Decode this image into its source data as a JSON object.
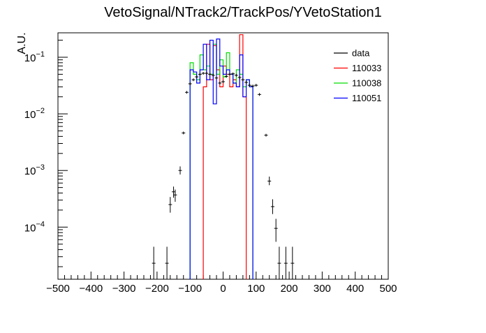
{
  "chart_data": {
    "type": "histogram",
    "title": "VetoSignal/NTrack2/TrackPos/YVetoStation1",
    "xlabel": "",
    "ylabel": "A.U.",
    "xlim": [
      -500,
      500
    ],
    "ylim": [
      1.2e-05,
      0.27
    ],
    "yscale": "log",
    "grid": false,
    "legend_position": "top-right",
    "x_ticks": [
      -500,
      -400,
      -300,
      -200,
      -100,
      0,
      100,
      200,
      300,
      400,
      500
    ],
    "x_tick_labels": [
      "−500",
      "−400",
      "−300",
      "−200",
      "−100",
      "0",
      "100",
      "200",
      "300",
      "400",
      "500"
    ],
    "y_ticks": [
      {
        "base": "10",
        "exp": "−4",
        "value": 0.0001
      },
      {
        "base": "10",
        "exp": "−3",
        "value": 0.001
      },
      {
        "base": "10",
        "exp": "−2",
        "value": 0.01
      },
      {
        "base": "10",
        "exp": "−1",
        "value": 0.1
      }
    ],
    "series": [
      {
        "name": "data",
        "style": "points",
        "color": "#000000",
        "points": [
          {
            "x": -210,
            "y": 2.3e-05,
            "ylo": 1.2e-05,
            "yhi": 4.5e-05
          },
          {
            "x": -170,
            "y": 2.3e-05,
            "ylo": 1.2e-05,
            "yhi": 4.5e-05
          },
          {
            "x": -160,
            "y": 0.00025,
            "ylo": 0.00018,
            "yhi": 0.00034
          },
          {
            "x": -150,
            "y": 0.00042,
            "ylo": 0.00033,
            "yhi": 0.00052
          },
          {
            "x": -145,
            "y": 0.00037,
            "ylo": 0.00028,
            "yhi": 0.00046
          },
          {
            "x": -130,
            "y": 0.001,
            "ylo": 0.00085,
            "yhi": 0.00118
          },
          {
            "x": -120,
            "y": 0.0046
          },
          {
            "x": -110,
            "y": 0.024
          },
          {
            "x": -100,
            "y": 0.034
          },
          {
            "x": -90,
            "y": 0.04
          },
          {
            "x": -80,
            "y": 0.045
          },
          {
            "x": -70,
            "y": 0.05
          },
          {
            "x": -60,
            "y": 0.052
          },
          {
            "x": -50,
            "y": 0.052
          },
          {
            "x": -40,
            "y": 0.05
          },
          {
            "x": -30,
            "y": 0.048
          },
          {
            "x": -20,
            "y": 0.043
          },
          {
            "x": -10,
            "y": 0.035
          },
          {
            "x": 0,
            "y": 0.037
          },
          {
            "x": 10,
            "y": 0.046
          },
          {
            "x": 20,
            "y": 0.05
          },
          {
            "x": 30,
            "y": 0.051
          },
          {
            "x": 40,
            "y": 0.048
          },
          {
            "x": 50,
            "y": 0.044
          },
          {
            "x": 60,
            "y": 0.04
          },
          {
            "x": 70,
            "y": 0.036
          },
          {
            "x": 80,
            "y": 0.032
          },
          {
            "x": 90,
            "y": 0.031
          },
          {
            "x": 100,
            "y": 0.032
          },
          {
            "x": 110,
            "y": 0.022
          },
          {
            "x": 130,
            "y": 0.0042
          },
          {
            "x": 140,
            "y": 0.00065,
            "ylo": 0.00055,
            "yhi": 0.00078
          },
          {
            "x": 150,
            "y": 0.00023,
            "ylo": 0.00017,
            "yhi": 0.00031
          },
          {
            "x": 160,
            "y": 9.5e-05,
            "ylo": 5.5e-05,
            "yhi": 0.00014
          },
          {
            "x": 170,
            "y": 2.3e-05,
            "ylo": 1.2e-05,
            "yhi": 4.5e-05
          },
          {
            "x": 190,
            "y": 2.3e-05,
            "ylo": 1.2e-05,
            "yhi": 4.5e-05
          },
          {
            "x": 210,
            "y": 2.3e-05,
            "ylo": 1.2e-05,
            "yhi": 4.5e-05
          }
        ]
      },
      {
        "name": "110033",
        "style": "step",
        "color": "#ff0000",
        "bins": [
          {
            "lo": -60,
            "hi": -50,
            "y": 0.03
          },
          {
            "lo": -50,
            "hi": -40,
            "y": 0.17
          },
          {
            "lo": -40,
            "hi": -30,
            "y": 0.04
          },
          {
            "lo": -30,
            "hi": -20,
            "y": 0.16
          },
          {
            "lo": -20,
            "hi": -10,
            "y": 0.06
          },
          {
            "lo": -10,
            "hi": 0,
            "y": 0.03
          },
          {
            "lo": 0,
            "hi": 10,
            "y": 0.07
          },
          {
            "lo": 10,
            "hi": 20,
            "y": 0.05
          },
          {
            "lo": 20,
            "hi": 30,
            "y": 0.03
          },
          {
            "lo": 30,
            "hi": 40,
            "y": 0.04
          },
          {
            "lo": 40,
            "hi": 50,
            "y": 0.03
          },
          {
            "lo": 50,
            "hi": 60,
            "y": 0.25
          },
          {
            "lo": 60,
            "hi": 70,
            "y": 0.02
          }
        ]
      },
      {
        "name": "110038",
        "style": "step",
        "color": "#00dd00",
        "bins": [
          {
            "lo": -100,
            "hi": -90,
            "y": 0.08
          },
          {
            "lo": -90,
            "hi": -80,
            "y": 0.05
          },
          {
            "lo": -80,
            "hi": -70,
            "y": 0.04
          },
          {
            "lo": -70,
            "hi": -60,
            "y": 0.11
          },
          {
            "lo": -60,
            "hi": -50,
            "y": 0.06
          },
          {
            "lo": -50,
            "hi": -40,
            "y": 0.07
          },
          {
            "lo": -40,
            "hi": -30,
            "y": 0.05
          },
          {
            "lo": -30,
            "hi": -20,
            "y": 0.17
          },
          {
            "lo": -20,
            "hi": -10,
            "y": 0.05
          },
          {
            "lo": -10,
            "hi": 0,
            "y": 0.09
          },
          {
            "lo": 0,
            "hi": 10,
            "y": 0.045
          },
          {
            "lo": 10,
            "hi": 20,
            "y": 0.12
          },
          {
            "lo": 20,
            "hi": 30,
            "y": 0.05
          },
          {
            "lo": 30,
            "hi": 40,
            "y": 0.035
          },
          {
            "lo": 40,
            "hi": 50,
            "y": 0.06
          },
          {
            "lo": 50,
            "hi": 60,
            "y": 0.05
          },
          {
            "lo": 60,
            "hi": 70,
            "y": 0.03
          },
          {
            "lo": 70,
            "hi": 80,
            "y": 0.04
          },
          {
            "lo": 80,
            "hi": 90,
            "y": 0.03
          }
        ]
      },
      {
        "name": "110051",
        "style": "step",
        "color": "#0000ff",
        "bins": [
          {
            "lo": -100,
            "hi": -90,
            "y": 0.06
          },
          {
            "lo": -90,
            "hi": -80,
            "y": 0.055
          },
          {
            "lo": -80,
            "hi": -70,
            "y": 0.035
          },
          {
            "lo": -70,
            "hi": -60,
            "y": 0.06
          },
          {
            "lo": -60,
            "hi": -50,
            "y": 0.17
          },
          {
            "lo": -50,
            "hi": -40,
            "y": 0.04
          },
          {
            "lo": -40,
            "hi": -30,
            "y": 0.2
          },
          {
            "lo": -30,
            "hi": -20,
            "y": 0.015
          },
          {
            "lo": -20,
            "hi": -10,
            "y": 0.21
          },
          {
            "lo": -10,
            "hi": 0,
            "y": 0.07
          },
          {
            "lo": 0,
            "hi": 10,
            "y": 0.05
          },
          {
            "lo": 10,
            "hi": 20,
            "y": 0.06
          },
          {
            "lo": 20,
            "hi": 30,
            "y": 0.05
          },
          {
            "lo": 30,
            "hi": 40,
            "y": 0.035
          },
          {
            "lo": 40,
            "hi": 50,
            "y": 0.03
          },
          {
            "lo": 50,
            "hi": 60,
            "y": 0.11
          },
          {
            "lo": 60,
            "hi": 70,
            "y": 0.02
          },
          {
            "lo": 70,
            "hi": 80,
            "y": 0.04
          },
          {
            "lo": 80,
            "hi": 90,
            "y": 0.03
          }
        ]
      }
    ]
  }
}
